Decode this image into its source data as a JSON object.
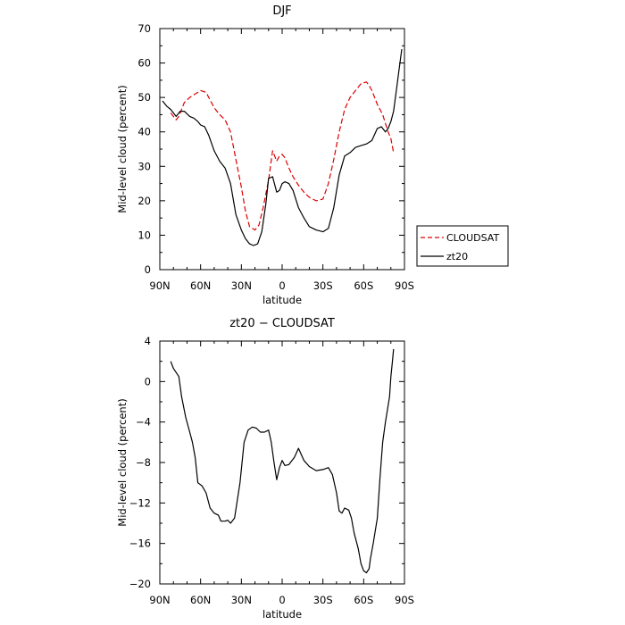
{
  "chart_data": [
    {
      "type": "line",
      "title": "DJF",
      "xlabel": "latitude",
      "ylabel": "Mid-level cloud (percent)",
      "xlim": [
        90,
        -90
      ],
      "ylim": [
        0,
        70
      ],
      "x_ticks": [
        90,
        60,
        30,
        0,
        -30,
        -60,
        -90
      ],
      "x_tick_labels": [
        "90N",
        "60N",
        "30N",
        "0",
        "30S",
        "60S",
        "90S"
      ],
      "y_ticks": [
        0,
        10,
        20,
        30,
        40,
        50,
        60,
        70
      ],
      "y_tick_labels": [
        "0",
        "10",
        "20",
        "30",
        "40",
        "50",
        "60",
        "70"
      ],
      "legend_position": "right",
      "series": [
        {
          "name": "CLOUDSAT",
          "color": "#dd0000",
          "dash": "dashed",
          "x": [
            82,
            78,
            76,
            72,
            68,
            64,
            60,
            56,
            50,
            46,
            42,
            38,
            34,
            30,
            27,
            24,
            20,
            17,
            14,
            10,
            7,
            4,
            2,
            0,
            -2,
            -5,
            -8,
            -12,
            -16,
            -20,
            -25,
            -30,
            -34,
            -38,
            -42,
            -46,
            -50,
            -54,
            -58,
            -62,
            -64,
            -66,
            -70,
            -74,
            -78,
            -80,
            -82
          ],
          "y": [
            45.5,
            43.5,
            44.5,
            48.5,
            50,
            51,
            52,
            51.5,
            47,
            45,
            43.5,
            40,
            32,
            24,
            17,
            12.5,
            11.5,
            13,
            18,
            26,
            34.5,
            31.5,
            33,
            33.5,
            32.5,
            29.5,
            27,
            24.5,
            22.5,
            21,
            20,
            20.5,
            25,
            32,
            40,
            46.5,
            50,
            52,
            54,
            54.5,
            53.5,
            52,
            48,
            45,
            40,
            38,
            34
          ]
        },
        {
          "name": "zt20",
          "color": "#000000",
          "dash": "solid",
          "x": [
            88,
            85,
            82,
            78,
            75,
            72,
            68,
            65,
            62,
            60,
            57,
            54,
            50,
            46,
            42,
            38,
            34,
            30,
            27,
            24,
            21,
            18,
            15,
            12,
            10,
            7,
            4,
            2,
            0,
            -2,
            -5,
            -8,
            -12,
            -16,
            -20,
            -25,
            -30,
            -34,
            -38,
            -42,
            -46,
            -50,
            -54,
            -58,
            -62,
            -66,
            -70,
            -73,
            -76,
            -78,
            -80,
            -82,
            -84,
            -86,
            -88
          ],
          "y": [
            49,
            47.5,
            46.5,
            44.5,
            46,
            46,
            44.5,
            44,
            43,
            42,
            41.5,
            39,
            34.5,
            31.5,
            29.5,
            25,
            16,
            11.5,
            9,
            7.5,
            7,
            7.5,
            11,
            19,
            26.5,
            27,
            22.5,
            23,
            25,
            25.5,
            25,
            23,
            18,
            15,
            12.5,
            11.5,
            11,
            12,
            18,
            27.5,
            33,
            34,
            35.5,
            36,
            36.5,
            37.5,
            41,
            41.5,
            40,
            41,
            43,
            46,
            52,
            58,
            64
          ]
        }
      ]
    },
    {
      "type": "line",
      "title": "zt20 − CLOUDSAT",
      "xlabel": "latitude",
      "ylabel": "Mid-level cloud (percent)",
      "xlim": [
        90,
        -90
      ],
      "ylim": [
        -20,
        4
      ],
      "x_ticks": [
        90,
        60,
        30,
        0,
        -30,
        -60,
        -90
      ],
      "x_tick_labels": [
        "90N",
        "60N",
        "30N",
        "0",
        "30S",
        "60S",
        "90S"
      ],
      "y_ticks": [
        4,
        0,
        -4,
        -8,
        -12,
        -16,
        -20
      ],
      "y_tick_labels": [
        "4",
        "0",
        "−4",
        "−8",
        "−12",
        "−16",
        "−20"
      ],
      "series": [
        {
          "color": "#000000",
          "dash": "solid",
          "x": [
            82,
            80,
            76,
            74,
            71,
            68,
            66,
            64,
            62,
            59,
            56,
            53,
            50,
            47,
            45,
            42,
            40,
            38,
            35,
            31,
            28,
            25,
            22,
            19,
            16,
            13,
            10,
            8,
            6,
            4,
            2,
            0,
            -2,
            -5,
            -9,
            -12,
            -16,
            -20,
            -25,
            -30,
            -34,
            -37,
            -40,
            -42,
            -44,
            -46,
            -49,
            -51,
            -53,
            -56,
            -58,
            -60,
            -62,
            -64,
            -65,
            -67,
            -70,
            -72,
            -74,
            -76,
            -79,
            -80,
            -81,
            -82
          ],
          "y": [
            2,
            1.3,
            0.5,
            -1.5,
            -3.5,
            -5,
            -6,
            -7.5,
            -10,
            -10.3,
            -11,
            -12.5,
            -13,
            -13.2,
            -13.8,
            -13.8,
            -13.7,
            -14,
            -13.5,
            -10,
            -6,
            -4.8,
            -4.5,
            -4.6,
            -5,
            -5,
            -4.8,
            -6,
            -8,
            -9.7,
            -8.5,
            -7.8,
            -8.3,
            -8.2,
            -7.5,
            -6.6,
            -7.8,
            -8.4,
            -8.8,
            -8.7,
            -8.5,
            -9.2,
            -11,
            -12.8,
            -13,
            -12.5,
            -12.7,
            -13.5,
            -15,
            -16.5,
            -18,
            -18.7,
            -18.9,
            -18.5,
            -17.5,
            -16,
            -13.5,
            -9.5,
            -6,
            -4,
            -1.5,
            0.5,
            1.8,
            3.2
          ]
        }
      ]
    }
  ]
}
